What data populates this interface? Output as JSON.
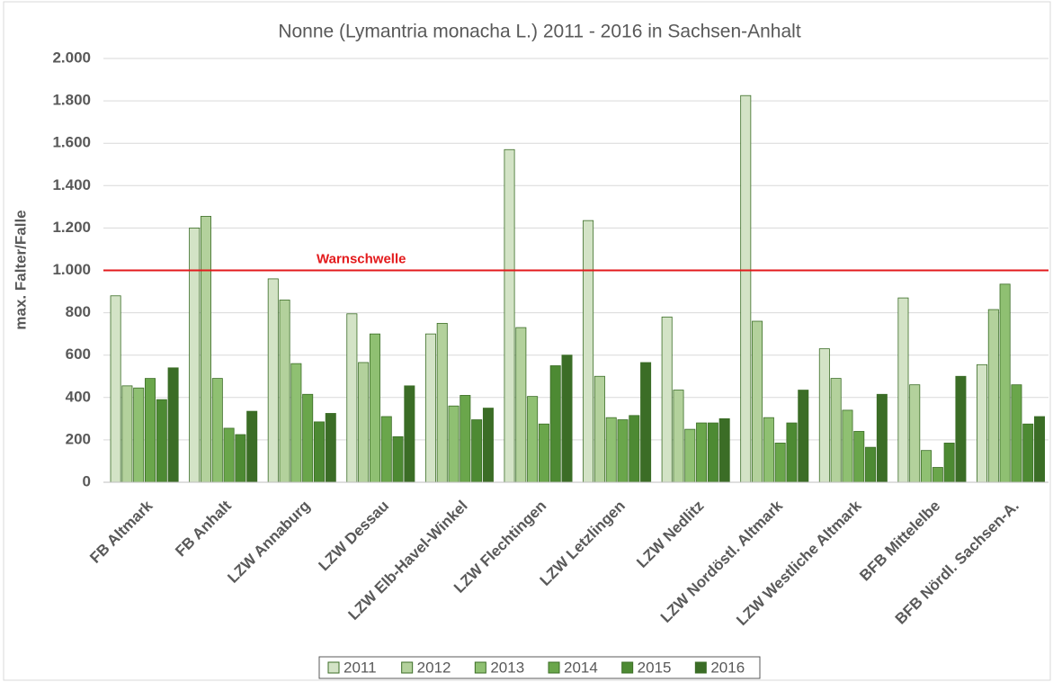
{
  "chart_data": {
    "type": "bar",
    "title": "Nonne (Lymantria monacha L.) 2011 - 2016 in Sachsen-Anhalt",
    "y_label": "max. Falter/Falle",
    "categories": [
      "FB Altmark",
      "FB Anhalt",
      "LZW Annaburg",
      "LZW Dessau",
      "LZW Elb-Havel-Winkel",
      "LZW Flechtingen",
      "LZW Letzlingen",
      "LZW Nedlitz",
      "LZW Nordöstl. Altmark",
      "LZW Westliche Altmark",
      "BFB Mittelelbe",
      "BFB Nördl. Sachsen-A."
    ],
    "series": [
      {
        "name": "2011",
        "color": "#d3e3c6",
        "values": [
          880,
          1200,
          960,
          795,
          700,
          1570,
          1235,
          780,
          1825,
          630,
          870,
          555
        ]
      },
      {
        "name": "2012",
        "color": "#b3d19c",
        "values": [
          455,
          1255,
          860,
          565,
          750,
          730,
          500,
          435,
          760,
          490,
          460,
          815
        ]
      },
      {
        "name": "2013",
        "color": "#8fc072",
        "values": [
          445,
          490,
          560,
          700,
          360,
          405,
          305,
          250,
          305,
          340,
          150,
          935
        ]
      },
      {
        "name": "2014",
        "color": "#6aa64b",
        "values": [
          490,
          255,
          415,
          310,
          410,
          275,
          295,
          280,
          185,
          240,
          70,
          460
        ]
      },
      {
        "name": "2015",
        "color": "#4d8a33",
        "values": [
          390,
          225,
          285,
          215,
          295,
          550,
          315,
          280,
          280,
          165,
          185,
          275
        ]
      },
      {
        "name": "2016",
        "color": "#3b6d26",
        "values": [
          540,
          335,
          325,
          455,
          350,
          600,
          565,
          300,
          435,
          415,
          500,
          310
        ]
      }
    ],
    "ylim": [
      0,
      2000
    ],
    "yticks": [
      0,
      200,
      400,
      600,
      800,
      {
        "value": 1000,
        "label": "1.000"
      },
      {
        "value": 1200,
        "label": "1.200"
      },
      {
        "value": 1400,
        "label": "1.400"
      },
      {
        "value": 1600,
        "label": "1.600"
      },
      {
        "value": 1800,
        "label": "1.800"
      },
      {
        "value": 2000,
        "label": "2.000"
      }
    ],
    "grid": true,
    "threshold": {
      "label": "Warnschwelle",
      "value": 1000,
      "color": "#e31a1c"
    },
    "legend": "bottom"
  }
}
